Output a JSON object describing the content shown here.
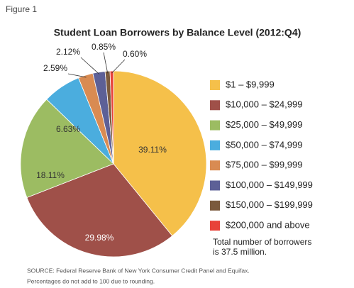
{
  "figure_label": "Figure 1",
  "chart_data": {
    "type": "pie",
    "title": "Student Loan Borrowers by Balance Level  (2012:Q4)",
    "categories": [
      "$1 – $9,999",
      "$10,000 – $24,999",
      "$25,000 – $49,999",
      "$50,000 – $74,999",
      "$75,000 – $99,999",
      "$100,000 – $149,999",
      "$150,000 – $199,999",
      "$200,000 and above"
    ],
    "values": [
      39.11,
      29.98,
      18.11,
      6.63,
      2.59,
      2.12,
      0.85,
      0.6
    ],
    "value_labels": [
      "39.11%",
      "29.98%",
      "18.11%",
      "6.63%",
      "2.59%",
      "2.12%",
      "0.85%",
      "0.60%"
    ],
    "colors": [
      "#f5c04a",
      "#9f5049",
      "#9cbc62",
      "#4badde",
      "#d98b52",
      "#5d6097",
      "#7b5a3d",
      "#e8433a"
    ],
    "annotation": [
      "Total number of borrowers",
      "is 37.5 million."
    ],
    "legend": "right"
  },
  "source": [
    "SOURCE: Federal Reserve Bank of New York Consumer Credit Panel and Equifax.",
    "Percentages do not add to 100 due to rounding."
  ]
}
